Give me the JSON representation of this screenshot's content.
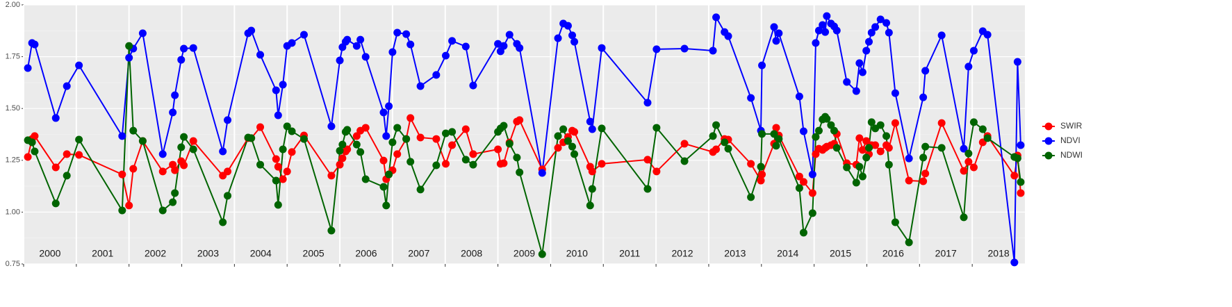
{
  "chart_data": {
    "type": "line",
    "x": [
      2000.08,
      2000.16,
      2000.21,
      2000.61,
      2000.82,
      2001.05,
      2001.87,
      2002.0,
      2002.08,
      2002.26,
      2002.64,
      2002.83,
      2002.87,
      2002.99,
      2003.04,
      2003.22,
      2003.78,
      2003.87,
      2004.26,
      2004.32,
      2004.49,
      2004.79,
      2004.83,
      2004.92,
      2005.0,
      2005.09,
      2005.32,
      2005.84,
      2006.0,
      2006.05,
      2006.11,
      2006.14,
      2006.32,
      2006.39,
      2006.49,
      2006.83,
      2006.88,
      2006.93,
      2007.0,
      2007.09,
      2007.26,
      2007.34,
      2007.53,
      2007.83,
      2008.01,
      2008.13,
      2008.39,
      2008.53,
      2009.0,
      2009.05,
      2009.11,
      2009.22,
      2009.36,
      2009.41,
      2009.84,
      2010.14,
      2010.24,
      2010.33,
      2010.41,
      2010.45,
      2010.75,
      2010.79,
      2010.97,
      2011.84,
      2012.01,
      2012.54,
      2013.08,
      2013.14,
      2013.3,
      2013.37,
      2013.8,
      2013.99,
      2014.01,
      2014.24,
      2014.28,
      2014.33,
      2014.72,
      2014.8,
      2014.97,
      2015.03,
      2015.09,
      2015.16,
      2015.21,
      2015.24,
      2015.32,
      2015.38,
      2015.43,
      2015.62,
      2015.8,
      2015.86,
      2015.92,
      2015.99,
      2016.04,
      2016.09,
      2016.16,
      2016.26,
      2016.37,
      2016.42,
      2016.54,
      2016.8,
      2017.07,
      2017.11,
      2017.42,
      2017.84,
      2017.93,
      2018.03,
      2018.2,
      2018.29,
      2018.8,
      2018.86,
      2018.92
    ],
    "series": [
      {
        "name": "SWIR",
        "color": "#ff0000",
        "values": [
          1.266,
          1.353,
          1.367,
          1.216,
          1.28,
          1.276,
          1.182,
          1.032,
          1.209,
          1.343,
          1.196,
          1.229,
          1.202,
          1.246,
          1.226,
          1.343,
          1.176,
          1.196,
          1.357,
          1.357,
          1.41,
          1.256,
          1.219,
          1.159,
          1.196,
          1.29,
          1.37,
          1.176,
          1.229,
          1.26,
          1.293,
          1.303,
          1.367,
          1.393,
          1.407,
          1.249,
          1.159,
          1.182,
          1.202,
          1.28,
          1.353,
          1.454,
          1.36,
          1.353,
          1.233,
          1.323,
          1.4,
          1.28,
          1.303,
          1.233,
          1.236,
          1.336,
          1.437,
          1.444,
          1.206,
          1.31,
          1.337,
          1.363,
          1.393,
          1.387,
          1.219,
          1.196,
          1.233,
          1.253,
          1.196,
          1.33,
          1.29,
          1.303,
          1.353,
          1.35,
          1.233,
          1.152,
          1.182,
          1.33,
          1.407,
          1.37,
          1.172,
          1.146,
          1.092,
          1.28,
          1.306,
          1.3,
          1.31,
          1.316,
          1.323,
          1.33,
          1.377,
          1.236,
          1.229,
          1.357,
          1.3,
          1.343,
          1.28,
          1.323,
          1.323,
          1.293,
          1.323,
          1.31,
          1.43,
          1.152,
          1.149,
          1.186,
          1.43,
          1.199,
          1.243,
          1.216,
          1.337,
          1.367,
          1.176,
          1.273,
          1.092
        ]
      },
      {
        "name": "NDVI",
        "color": "#0000ff",
        "values": [
          1.695,
          1.816,
          1.809,
          1.454,
          1.608,
          1.708,
          1.367,
          1.745,
          1.789,
          1.863,
          1.28,
          1.481,
          1.564,
          1.735,
          1.789,
          1.792,
          1.293,
          1.444,
          1.863,
          1.876,
          1.759,
          1.588,
          1.467,
          1.615,
          1.802,
          1.816,
          1.856,
          1.414,
          1.732,
          1.796,
          1.822,
          1.832,
          1.802,
          1.832,
          1.749,
          1.481,
          1.367,
          1.511,
          1.772,
          1.866,
          1.859,
          1.809,
          1.608,
          1.662,
          1.755,
          1.826,
          1.799,
          1.611,
          1.812,
          1.776,
          1.802,
          1.856,
          1.812,
          1.792,
          1.189,
          1.839,
          1.91,
          1.899,
          1.853,
          1.822,
          1.437,
          1.4,
          1.792,
          1.528,
          1.786,
          1.789,
          1.779,
          1.94,
          1.869,
          1.849,
          1.551,
          1.393,
          1.708,
          1.893,
          1.826,
          1.863,
          1.558,
          1.39,
          1.182,
          1.816,
          1.876,
          1.903,
          1.869,
          1.946,
          1.91,
          1.896,
          1.876,
          1.628,
          1.584,
          1.719,
          1.675,
          1.779,
          1.822,
          1.866,
          1.893,
          1.93,
          1.913,
          1.866,
          1.574,
          1.259,
          1.554,
          1.682,
          1.853,
          1.306,
          1.702,
          1.779,
          1.873,
          1.856,
          0.757,
          1.725,
          1.323
        ]
      },
      {
        "name": "NDWI",
        "color": "#006400",
        "values": [
          1.347,
          1.337,
          1.293,
          1.042,
          1.176,
          1.35,
          1.008,
          1.802,
          1.393,
          1.343,
          1.008,
          1.048,
          1.092,
          1.313,
          1.363,
          1.303,
          0.951,
          1.079,
          1.36,
          1.357,
          1.229,
          1.152,
          1.035,
          1.303,
          1.414,
          1.39,
          1.353,
          0.911,
          1.296,
          1.326,
          1.387,
          1.397,
          1.326,
          1.29,
          1.159,
          1.122,
          1.032,
          1.182,
          1.337,
          1.407,
          1.353,
          1.243,
          1.109,
          1.226,
          1.38,
          1.387,
          1.253,
          1.229,
          1.387,
          1.404,
          1.417,
          1.33,
          1.263,
          1.192,
          0.797,
          1.367,
          1.4,
          1.343,
          1.316,
          1.28,
          1.032,
          1.112,
          1.404,
          1.112,
          1.407,
          1.246,
          1.367,
          1.42,
          1.337,
          1.306,
          1.072,
          1.219,
          1.377,
          1.377,
          1.32,
          1.353,
          1.116,
          0.901,
          0.995,
          1.363,
          1.393,
          1.447,
          1.46,
          1.45,
          1.42,
          1.393,
          1.31,
          1.216,
          1.142,
          1.219,
          1.172,
          1.263,
          1.31,
          1.434,
          1.404,
          1.42,
          1.367,
          1.229,
          0.951,
          0.854,
          1.263,
          1.316,
          1.31,
          0.975,
          1.283,
          1.434,
          1.4,
          1.357,
          1.266,
          1.26,
          1.145
        ]
      }
    ],
    "xlim": [
      2000,
      2019
    ],
    "xticks": [
      {
        "value": 2000,
        "label": "2000"
      },
      {
        "value": 2001,
        "label": "2001"
      },
      {
        "value": 2002,
        "label": "2002"
      },
      {
        "value": 2003,
        "label": "2003"
      },
      {
        "value": 2004,
        "label": "2004"
      },
      {
        "value": 2005,
        "label": "2005"
      },
      {
        "value": 2006,
        "label": "2006"
      },
      {
        "value": 2007,
        "label": "2007"
      },
      {
        "value": 2008,
        "label": "2008"
      },
      {
        "value": 2009,
        "label": "2009"
      },
      {
        "value": 2010,
        "label": "2010"
      },
      {
        "value": 2011,
        "label": "2011"
      },
      {
        "value": 2012,
        "label": "2012"
      },
      {
        "value": 2013,
        "label": "2013"
      },
      {
        "value": 2014,
        "label": "2014"
      },
      {
        "value": 2015,
        "label": "2015"
      },
      {
        "value": 2016,
        "label": "2016"
      },
      {
        "value": 2017,
        "label": "2017"
      },
      {
        "value": 2018,
        "label": "2018"
      }
    ],
    "ylim": [
      0.75,
      2
    ],
    "yticks": [
      {
        "value": 0.75,
        "label": "0.75"
      },
      {
        "value": 1,
        "label": "1.00"
      },
      1.25,
      {
        "value": 1.5,
        "label": "1.50"
      },
      1.75,
      {
        "value": 2,
        "label": "2.00"
      }
    ],
    "grid": true,
    "legend": "right"
  }
}
